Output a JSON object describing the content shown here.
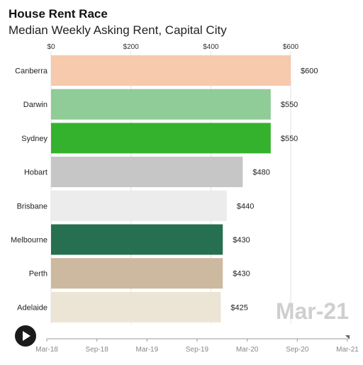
{
  "chart_data": {
    "type": "bar",
    "orientation": "horizontal",
    "title": "House Rent Race",
    "subtitle": "Median Weekly Asking Rent, Capital City",
    "categories": [
      "Canberra",
      "Darwin",
      "Sydney",
      "Hobart",
      "Brisbane",
      "Melbourne",
      "Perth",
      "Adelaide"
    ],
    "values": [
      600,
      550,
      550,
      480,
      440,
      430,
      430,
      425
    ],
    "value_labels": [
      "$600",
      "$550",
      "$550",
      "$480",
      "$440",
      "$430",
      "$430",
      "$425"
    ],
    "colors": [
      "#f7c9ad",
      "#8fcc98",
      "#35b22d",
      "#c6c6c6",
      "#ececec",
      "#27704f",
      "#cdb9a0",
      "#ece5d6"
    ],
    "xlim": [
      0,
      600
    ],
    "x_ticks": [
      0,
      200,
      400,
      600
    ],
    "x_tick_labels": [
      "$0",
      "$200",
      "$400",
      "$600"
    ],
    "grid": true,
    "current_date": "Mar-21",
    "timeline_labels": [
      "Mar-18",
      "Sep-18",
      "Mar-19",
      "Sep-19",
      "Mar-20",
      "Sep-20",
      "Mar-21"
    ],
    "timeline_position": 1.0
  },
  "controls": {
    "play_icon": "play-icon"
  }
}
